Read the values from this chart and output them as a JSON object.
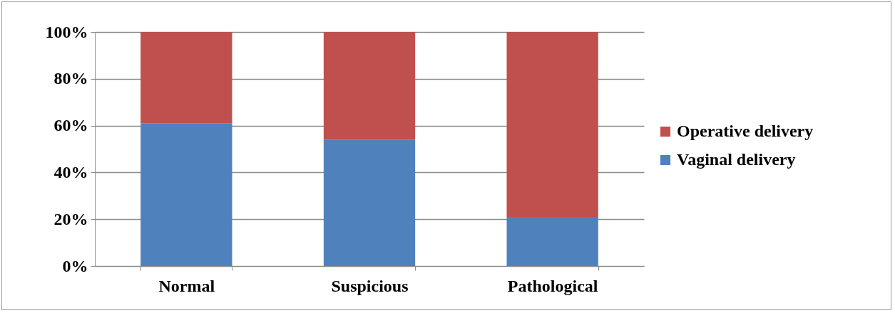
{
  "chart_data": {
    "type": "bar",
    "stacked": true,
    "categories": [
      "Normal",
      "Suspicious",
      "Pathological"
    ],
    "series": [
      {
        "name": "Vaginal delivery",
        "color": "#4f81bd",
        "values": [
          61,
          54,
          21
        ]
      },
      {
        "name": "Operative delivery",
        "color": "#c0504d",
        "values": [
          39,
          46,
          79
        ]
      }
    ],
    "ylim": [
      0,
      100
    ],
    "yticks": [
      {
        "value": 0,
        "label": "0%"
      },
      {
        "value": 20,
        "label": "20%"
      },
      {
        "value": 40,
        "label": "40%"
      },
      {
        "value": 60,
        "label": "60%"
      },
      {
        "value": 80,
        "label": "80%"
      },
      {
        "value": 100,
        "label": "100%"
      }
    ],
    "grid": "y",
    "legend": "right"
  }
}
